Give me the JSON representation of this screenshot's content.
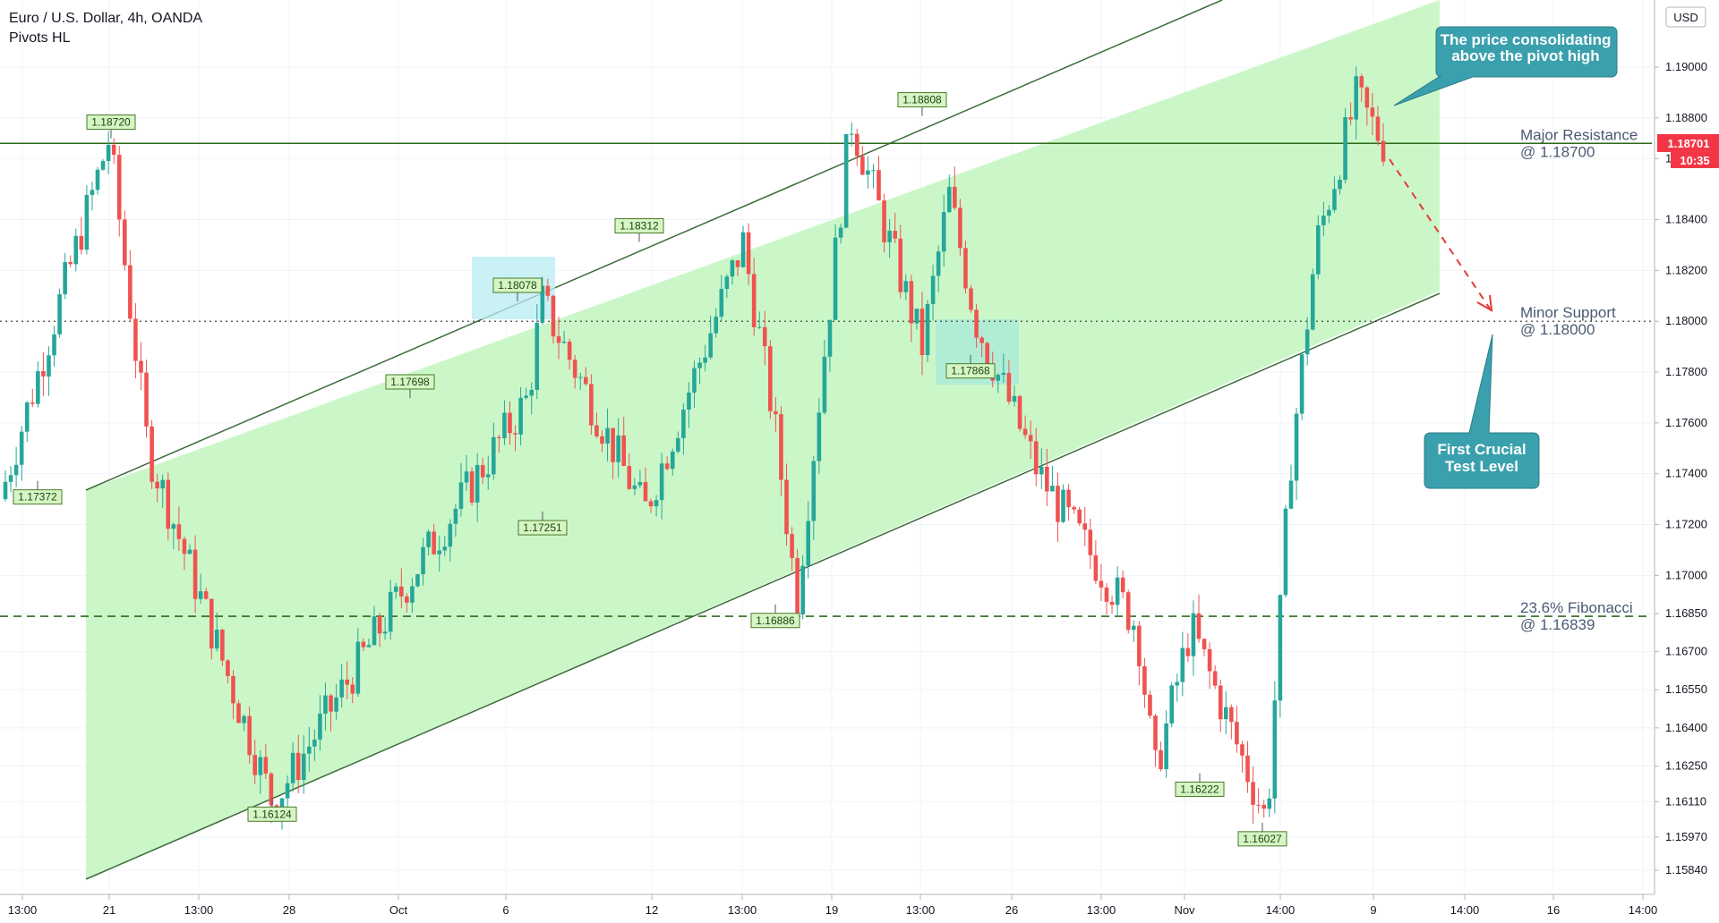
{
  "header": {
    "symbol": "Euro / U.S. Dollar, 4h, OANDA",
    "indicator": "Pivots HL"
  },
  "currency": "USD",
  "price_tag": {
    "value": "1.18701",
    "countdown": "10:35",
    "color": "#f23645"
  },
  "colors": {
    "up": "#26a69a",
    "down": "#ef5350",
    "channel_fill": "#c8f7c5",
    "channel_line": "#3d6b3a",
    "callout": "#3aa0ad"
  },
  "chart_data": {
    "type": "candlestick",
    "title": "Euro / U.S. Dollar, 4h, OANDA",
    "ylim": [
      1.1575,
      1.1917
    ],
    "y_ticks": [
      "1.19000",
      "1.18800",
      "1.18640",
      "1.18400",
      "1.18200",
      "1.18000",
      "1.17800",
      "1.17600",
      "1.17400",
      "1.17200",
      "1.17000",
      "1.16850",
      "1.16700",
      "1.16550",
      "1.16400",
      "1.16250",
      "1.16110",
      "1.15970",
      "1.15840"
    ],
    "x_ticks": [
      "13:00",
      "21",
      "13:00",
      "28",
      "Oct",
      "6",
      "12",
      "13:00",
      "19",
      "13:00",
      "26",
      "13:00",
      "Nov",
      "14:00",
      "9",
      "14:00",
      "16",
      "14:00"
    ],
    "pivots": [
      {
        "label": "1.17372",
        "value": 1.17372,
        "type": "low"
      },
      {
        "label": "1.18720",
        "value": 1.1872,
        "type": "high"
      },
      {
        "label": "1.16124",
        "value": 1.16124,
        "type": "low"
      },
      {
        "label": "1.17698",
        "value": 1.17698,
        "type": "high"
      },
      {
        "label": "1.18078",
        "value": 1.18078,
        "type": "high"
      },
      {
        "label": "1.17251",
        "value": 1.17251,
        "type": "low"
      },
      {
        "label": "1.18312",
        "value": 1.18312,
        "type": "high"
      },
      {
        "label": "1.16886",
        "value": 1.16886,
        "type": "low"
      },
      {
        "label": "1.18808",
        "value": 1.18808,
        "type": "high"
      },
      {
        "label": "1.17868",
        "value": 1.17868,
        "type": "low"
      },
      {
        "label": "1.16222",
        "value": 1.16222,
        "type": "low"
      },
      {
        "label": "1.16027",
        "value": 1.16027,
        "type": "low"
      }
    ],
    "levels": [
      {
        "name": "Major Resistance",
        "value": 1.187,
        "label": "@ 1.18700",
        "style": "solid"
      },
      {
        "name": "Minor Support",
        "value": 1.18,
        "label": "@ 1.18000",
        "style": "dotted"
      },
      {
        "name": "23.6% Fibonacci",
        "value": 1.16839,
        "label": "@ 1.16839",
        "style": "dashed"
      }
    ],
    "callouts": [
      {
        "text_lines": [
          "The price consolidating",
          "above the pivot high"
        ]
      },
      {
        "text_lines": [
          "First Crucial",
          "Test Level"
        ]
      }
    ],
    "key_prices": [
      1.173,
      1.1872,
      1.175,
      1.161,
      1.17,
      1.177,
      1.1808,
      1.1725,
      1.1831,
      1.176,
      1.169,
      1.188,
      1.179,
      1.185,
      1.18,
      1.174,
      1.168,
      1.1622,
      1.168,
      1.1603,
      1.174,
      1.183,
      1.1888,
      1.187
    ]
  }
}
